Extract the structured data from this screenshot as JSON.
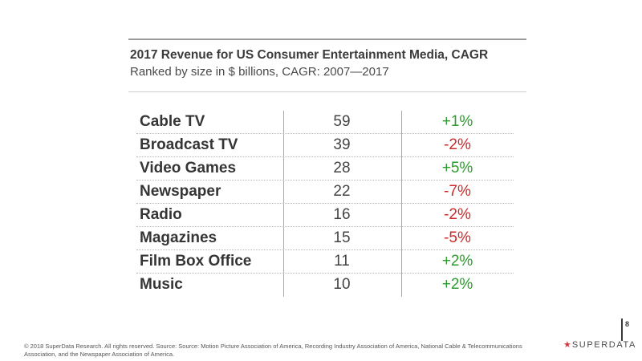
{
  "header": {
    "title": "2017 Revenue for US Consumer Entertainment Media, CAGR",
    "subtitle": "Ranked by size in $ billions, CAGR: 2007—2017"
  },
  "chart_data": {
    "type": "table",
    "title": "2017 Revenue for US Consumer Entertainment Media, CAGR",
    "subtitle": "Ranked by size in $ billions, CAGR: 2007—2017",
    "rows": [
      {
        "name": "Cable TV",
        "value": "59",
        "cagr": "+1%"
      },
      {
        "name": "Broadcast TV",
        "value": "39",
        "cagr": "-2%"
      },
      {
        "name": "Video Games",
        "value": "28",
        "cagr": "+5%"
      },
      {
        "name": "Newspaper",
        "value": "22",
        "cagr": "-7%"
      },
      {
        "name": "Radio",
        "value": "16",
        "cagr": "-2%"
      },
      {
        "name": "Magazines",
        "value": "15",
        "cagr": "-5%"
      },
      {
        "name": "Film Box Office",
        "value": "11",
        "cagr": "+2%"
      },
      {
        "name": "Music",
        "value": "10",
        "cagr": "+2%"
      }
    ]
  },
  "colors": {
    "positive": "#2e9b2e",
    "negative": "#cc2a2a"
  },
  "footer": {
    "text": "© 2018 SuperData Research. All rights reserved. Source: Source: Motion Picture Association of America, Recording Industry Association of America, National Cable & Telecommunications Association, and the Newspaper Association of America."
  },
  "branding": {
    "logo_icon": "star-icon",
    "logo_star": "★",
    "logo_text": "SUPERDATA",
    "page_number": "8"
  }
}
